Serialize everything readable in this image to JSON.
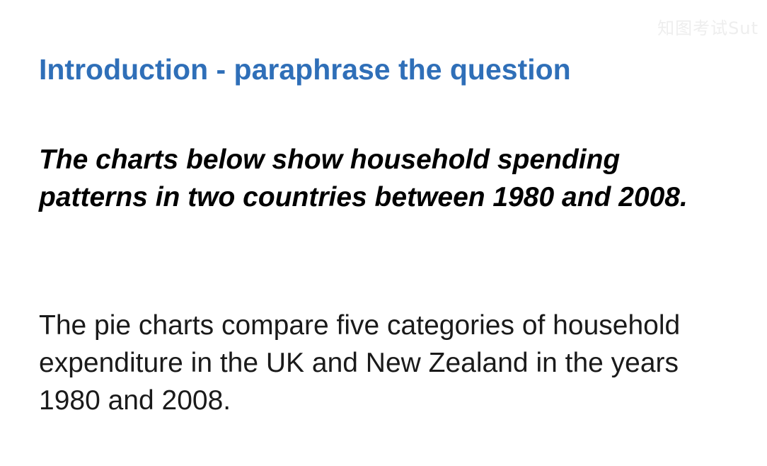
{
  "slide": {
    "watermark": "知图考试Sut",
    "heading": "Introduction - paraphrase the question",
    "question": "The charts below show household spending patterns in two countries between 1980 and 2008.",
    "paraphrase": "The pie charts compare five categories of household expenditure in the UK and New Zealand in the years 1980 and 2008."
  },
  "colors": {
    "heading": "#2f6fb8",
    "question": "#000000",
    "paraphrase": "#1a1a1a",
    "background": "#ffffff"
  }
}
